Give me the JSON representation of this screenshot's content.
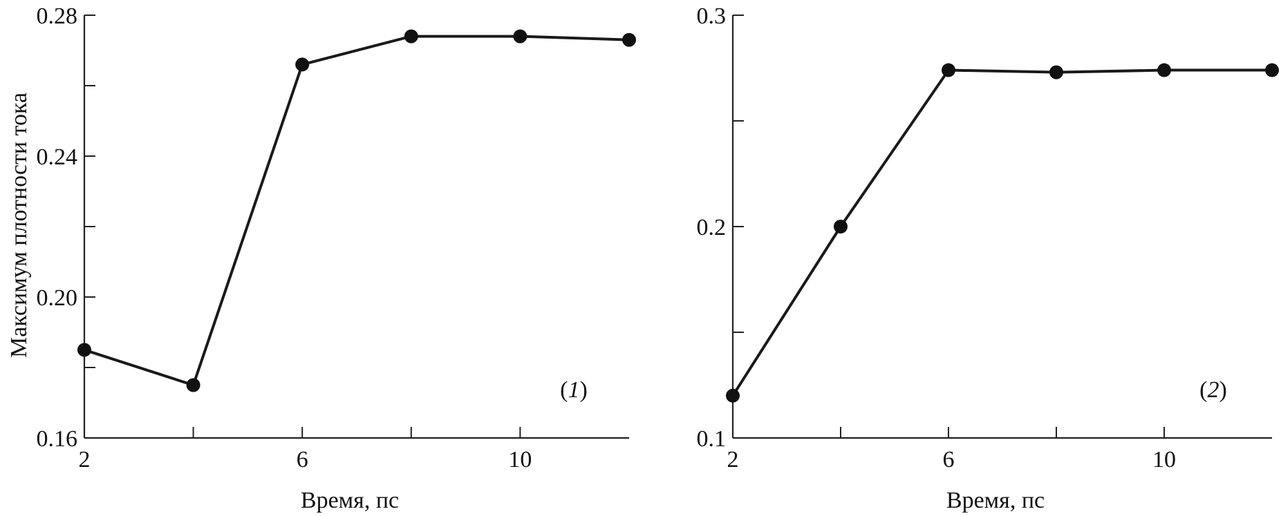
{
  "chart_data": [
    {
      "type": "line",
      "panel_label": "(1)",
      "panel_number": "1",
      "xlabel": "Время, пс",
      "ylabel": "Максимум плотности тока",
      "xlim": [
        2,
        12
      ],
      "ylim": [
        0.16,
        0.28
      ],
      "xticks": [
        2,
        4,
        6,
        8,
        10
      ],
      "xtick_labels": [
        "2",
        "",
        "6",
        "",
        "10"
      ],
      "yticks": [
        0.16,
        0.18,
        0.2,
        0.22,
        0.24,
        0.26,
        0.28
      ],
      "ytick_labels": [
        "0.16",
        "",
        "0.20",
        "",
        "0.24",
        "",
        "0.28"
      ],
      "grid": false,
      "series": [
        {
          "x": [
            2,
            4,
            6,
            8,
            10,
            12
          ],
          "y": [
            0.185,
            0.175,
            0.266,
            0.274,
            0.274,
            0.273
          ]
        }
      ]
    },
    {
      "type": "line",
      "panel_label": "(2)",
      "panel_number": "2",
      "xlabel": "Время, пс",
      "ylabel": "",
      "xlim": [
        2,
        12
      ],
      "ylim": [
        0.1,
        0.3
      ],
      "xticks": [
        2,
        4,
        6,
        8,
        10
      ],
      "xtick_labels": [
        "2",
        "",
        "6",
        "",
        "10"
      ],
      "yticks": [
        0.1,
        0.15,
        0.2,
        0.25,
        0.3
      ],
      "ytick_labels": [
        "0.1",
        "",
        "0.2",
        "",
        "0.3"
      ],
      "grid": false,
      "series": [
        {
          "x": [
            2,
            4,
            6,
            8,
            10,
            12
          ],
          "y": [
            0.12,
            0.2,
            0.274,
            0.273,
            0.274,
            0.274
          ]
        }
      ]
    }
  ],
  "colors": {
    "line": "#1a1a1a",
    "marker": "#111111",
    "axis": "#222222"
  }
}
